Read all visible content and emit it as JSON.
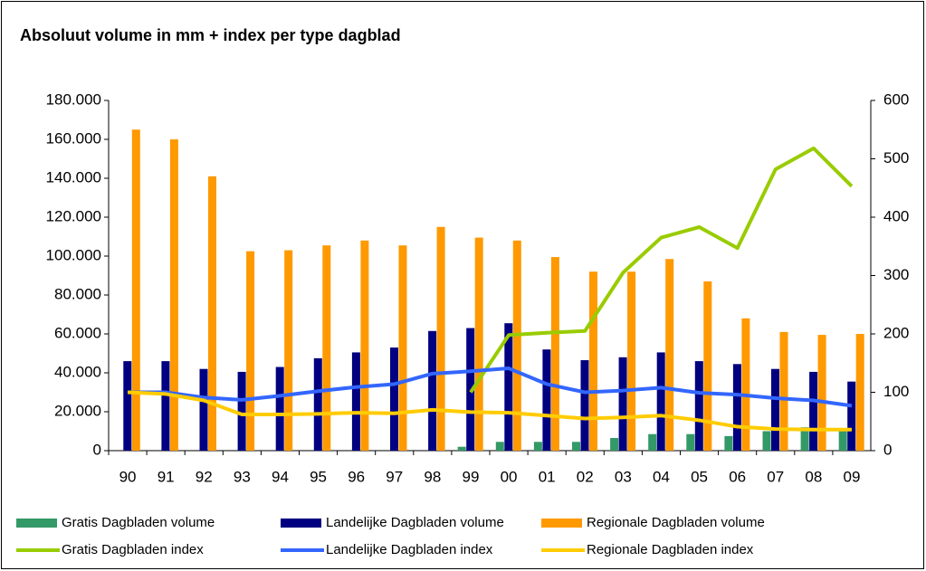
{
  "chart_data": {
    "type": "bar_line",
    "title": "Absoluut volume in mm + index per type dagblad",
    "categories": [
      "90",
      "91",
      "92",
      "93",
      "94",
      "95",
      "96",
      "97",
      "98",
      "99",
      "00",
      "01",
      "02",
      "03",
      "04",
      "05",
      "06",
      "07",
      "08",
      "09"
    ],
    "ylim": [
      0,
      180000
    ],
    "yticks": [
      0,
      {
        "value": 20000,
        "label": "20.000"
      },
      {
        "value": 40000,
        "label": "40.000"
      },
      {
        "value": 60000,
        "label": "60.000"
      },
      {
        "value": 80000,
        "label": "80.000"
      },
      {
        "value": 100000,
        "label": "100.000"
      },
      {
        "value": 120000,
        "label": "120.000"
      },
      {
        "value": 140000,
        "label": "140.000"
      },
      {
        "value": 160000,
        "label": "160.000"
      },
      {
        "value": 180000,
        "label": "180.000"
      }
    ],
    "y2lim": [
      0,
      600
    ],
    "y2ticks": [
      0,
      100,
      200,
      300,
      400,
      500,
      600
    ],
    "series": [
      {
        "name": "Gratis Dagbladen volume",
        "type": "bar",
        "color": "#339966",
        "values": [
          null,
          null,
          null,
          null,
          null,
          null,
          null,
          null,
          null,
          2000,
          4500,
          4500,
          4500,
          6500,
          8500,
          8500,
          7500,
          10000,
          12000,
          10500
        ]
      },
      {
        "name": "Landelijke Dagbladen volume",
        "type": "bar",
        "color": "#000080",
        "values": [
          46000,
          46000,
          42000,
          40500,
          43000,
          47500,
          50500,
          53000,
          61500,
          63000,
          65500,
          52000,
          46500,
          48000,
          50500,
          46000,
          44500,
          42000,
          40500,
          35500
        ]
      },
      {
        "name": "Regionale Dagbladen volume",
        "type": "bar",
        "color": "#ff9900",
        "values": [
          165000,
          160000,
          141000,
          102500,
          103000,
          105500,
          108000,
          105500,
          115000,
          109500,
          108000,
          99500,
          92000,
          92000,
          98500,
          87000,
          68000,
          61000,
          59500,
          60000
        ]
      },
      {
        "name": "Gratis Dagbladen index",
        "type": "line",
        "axis": "y2",
        "color": "#99cc00",
        "values": [
          null,
          null,
          null,
          null,
          null,
          null,
          null,
          null,
          null,
          100,
          198,
          202,
          205,
          305,
          365,
          383,
          347,
          482,
          518,
          453
        ]
      },
      {
        "name": "Landelijke Dagbladen index",
        "type": "line",
        "axis": "y2",
        "color": "#3366ff",
        "values": [
          100,
          100,
          91,
          87,
          94,
          102,
          109,
          114,
          132,
          136,
          141,
          114,
          100,
          103,
          108,
          99,
          96,
          90,
          86,
          77
        ]
      },
      {
        "name": "Regionale Dagbladen index",
        "type": "line",
        "axis": "y2",
        "color": "#ffcc00",
        "values": [
          100,
          97,
          86,
          62,
          62,
          63,
          65,
          64,
          70,
          66,
          65,
          60,
          55,
          57,
          60,
          52,
          41,
          37,
          36,
          36
        ]
      }
    ]
  }
}
